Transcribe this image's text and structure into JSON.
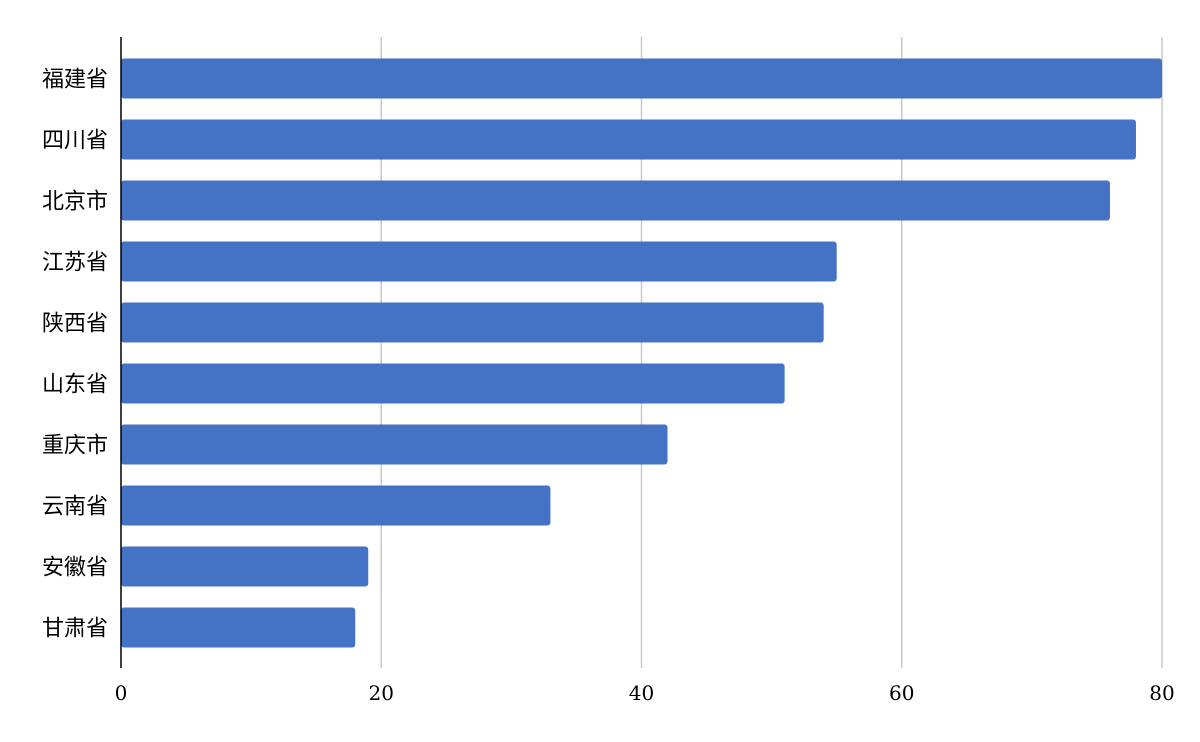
{
  "chart_data": {
    "type": "bar",
    "orientation": "horizontal",
    "title": "",
    "xlabel": "",
    "ylabel": "",
    "categories": [
      "福建省",
      "四川省",
      "北京市",
      "江苏省",
      "陕西省",
      "山东省",
      "重庆市",
      "云南省",
      "安徽省",
      "甘肃省"
    ],
    "values": [
      80,
      78,
      76,
      55,
      54,
      51,
      42,
      33,
      19,
      18
    ],
    "xlim": [
      0,
      80
    ],
    "xticks": [
      0,
      20,
      40,
      60,
      80
    ],
    "grid": true,
    "legend": "none",
    "colors": {
      "bar": "#4472c4",
      "grid": "#c8c8c8",
      "axis": "#000000"
    }
  }
}
